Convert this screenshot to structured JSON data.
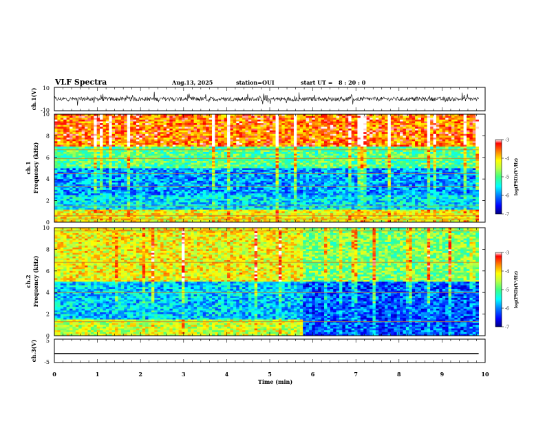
{
  "header": {
    "title": "VLF Spectra",
    "date": "Aug.13, 2025",
    "station": "station=OUI",
    "start_ut_label": "start  UT =",
    "start_ut_value": "8  : 20 : 0"
  },
  "colors": {
    "background": "#ffffff",
    "axis": "#000000",
    "trace": "#000000"
  },
  "colorbar_stops": [
    "#000080",
    "#0000ff",
    "#0080ff",
    "#00ffff",
    "#40ff80",
    "#c0ff40",
    "#ffff00",
    "#ff8000",
    "#ff0000",
    "#ffffff"
  ],
  "chart_data": [
    {
      "name": "ch1-waveform",
      "type": "line",
      "ylabel": "ch.1(V)",
      "ylim": [
        -10,
        10
      ],
      "ytick_labels": [
        "10",
        "-10"
      ],
      "x_range_min": [
        0,
        9.85
      ],
      "trace_amplitude_v": [
        -3,
        3
      ]
    },
    {
      "name": "ch1-spectrogram",
      "type": "heatmap",
      "ylabel_channel": "ch.1",
      "ylabel": "Frequency  (kHz)",
      "ylim": [
        0,
        10
      ],
      "ytick_labels": [
        "0",
        "2",
        "4",
        "6",
        "8",
        "10"
      ],
      "x_range_min": [
        0,
        9.85
      ],
      "colorbar": {
        "label": "log(PSD)(V²/Hz)",
        "range": [
          -7,
          -3
        ],
        "tick_labels": [
          "-3",
          "-4",
          "-5",
          "-6",
          "-7"
        ]
      },
      "bands": [
        {
          "freq_khz": [
            0,
            1.2
          ],
          "log_psd": -4.2
        },
        {
          "freq_khz": [
            1.2,
            2.5
          ],
          "log_psd": -5.6
        },
        {
          "freq_khz": [
            2.5,
            5
          ],
          "log_psd": -5.9
        },
        {
          "freq_khz": [
            5,
            7
          ],
          "log_psd": -5.0
        },
        {
          "freq_khz": [
            7,
            10
          ],
          "log_psd": -3.6
        }
      ],
      "persistent_lines_khz": [
        0.3,
        0.6,
        1.5,
        3.3,
        4.5,
        5.9,
        6.7
      ]
    },
    {
      "name": "ch2-spectrogram",
      "type": "heatmap",
      "ylabel_channel": "ch.2",
      "ylabel": "Frequency  (kHz)",
      "ylim": [
        0,
        10
      ],
      "ytick_labels": [
        "0",
        "2",
        "4",
        "6",
        "8",
        "10"
      ],
      "x_range_min": [
        0,
        9.85
      ],
      "transition_min": 5.8,
      "colorbar": {
        "label": "log(PSD)(V²/Hz)",
        "range": [
          -7,
          -3
        ],
        "tick_labels": [
          "-3",
          "-4",
          "-5",
          "-6",
          "-7"
        ]
      },
      "bands_before": [
        {
          "freq_khz": [
            0,
            1.5
          ],
          "log_psd": -4.4
        },
        {
          "freq_khz": [
            1.5,
            5
          ],
          "log_psd": -5.7
        },
        {
          "freq_khz": [
            5,
            10
          ],
          "log_psd": -4.2
        }
      ],
      "bands_after": [
        {
          "freq_khz": [
            0,
            5
          ],
          "log_psd": -6.2
        },
        {
          "freq_khz": [
            5,
            10
          ],
          "log_psd": -4.8
        }
      ],
      "persistent_lines_khz": [
        1.3,
        4.0,
        6.8,
        9.7
      ]
    },
    {
      "name": "ch3-waveform",
      "type": "line",
      "ylabel": "ch.3(V)",
      "ylim": [
        -5,
        5
      ],
      "ytick_labels": [
        "5",
        "-5"
      ],
      "x_range_min": [
        0,
        9.85
      ],
      "constant_value_v": -1.2
    }
  ],
  "time_axis": {
    "xlabel": "Time  (min)",
    "xlim": [
      0,
      10
    ],
    "tick_labels": [
      "0",
      "1",
      "2",
      "3",
      "4",
      "5",
      "6",
      "7",
      "8",
      "9",
      "10"
    ]
  }
}
